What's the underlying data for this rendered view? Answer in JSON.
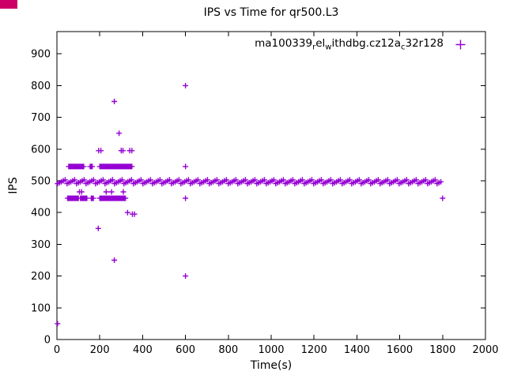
{
  "artifact": {
    "color": "#cc0066"
  },
  "chart_data": {
    "type": "scatter",
    "title": "IPS vs Time for qr500.L3",
    "xlabel": "Time(s)",
    "ylabel": "IPS",
    "xlim": [
      0,
      2000
    ],
    "ylim": [
      0,
      970
    ],
    "xticks": [
      0,
      200,
      400,
      600,
      800,
      1000,
      1200,
      1400,
      1600,
      1800,
      2000
    ],
    "yticks": [
      0,
      100,
      200,
      300,
      400,
      500,
      600,
      700,
      800,
      900
    ],
    "grid": false,
    "marker": "plus",
    "color": "#9400D3",
    "legend": {
      "position": "top-right-inside",
      "label_visible": "ma100339relwithdbg.cz12ac32r128",
      "segments": [
        {
          "text": "ma100339"
        },
        {
          "sub": "r"
        },
        {
          "text": "el"
        },
        {
          "sub": "w"
        },
        {
          "text": "ithdbg.cz12a"
        },
        {
          "sub": "c"
        },
        {
          "text": "32r128"
        }
      ]
    },
    "band": {
      "comment": "dense horizontal band of overlapping + markers",
      "y_center": 497,
      "y_spread": [
        491,
        494,
        497,
        500,
        503
      ],
      "x_start": 3,
      "x_end": 1800
    },
    "clusters": [
      {
        "y": 545,
        "x": [
          55,
          60,
          65,
          70,
          75,
          80,
          85,
          90,
          95,
          100,
          105,
          110,
          115,
          120,
          125,
          155,
          160,
          165,
          200,
          205,
          210,
          215,
          220,
          225,
          230,
          235,
          240,
          245,
          250,
          255,
          260,
          265,
          270,
          275,
          280,
          285,
          290,
          295,
          300,
          305,
          310,
          315,
          320,
          325,
          330,
          335,
          340,
          345,
          350,
          600
        ]
      },
      {
        "y": 445,
        "x": [
          50,
          55,
          60,
          65,
          70,
          75,
          80,
          85,
          90,
          95,
          100,
          110,
          115,
          120,
          125,
          130,
          135,
          140,
          160,
          165,
          170,
          200,
          205,
          210,
          215,
          220,
          225,
          230,
          235,
          240,
          245,
          250,
          255,
          260,
          265,
          270,
          275,
          280,
          285,
          290,
          295,
          300,
          305,
          310,
          315,
          320,
          600,
          1800
        ]
      },
      {
        "y": 465,
        "x": [
          105,
          115,
          230,
          255,
          310
        ]
      },
      {
        "y": 595,
        "x": [
          195,
          205,
          300,
          308,
          340,
          350
        ]
      },
      {
        "y": 650,
        "x": [
          290
        ]
      },
      {
        "y": 750,
        "x": [
          268
        ]
      },
      {
        "y": 800,
        "x": [
          600
        ]
      },
      {
        "y": 400,
        "x": [
          330
        ]
      },
      {
        "y": 395,
        "x": [
          352,
          362
        ]
      },
      {
        "y": 350,
        "x": [
          193
        ]
      },
      {
        "y": 250,
        "x": [
          268
        ]
      },
      {
        "y": 200,
        "x": [
          600
        ]
      },
      {
        "y": 50,
        "x": [
          3
        ]
      }
    ]
  }
}
